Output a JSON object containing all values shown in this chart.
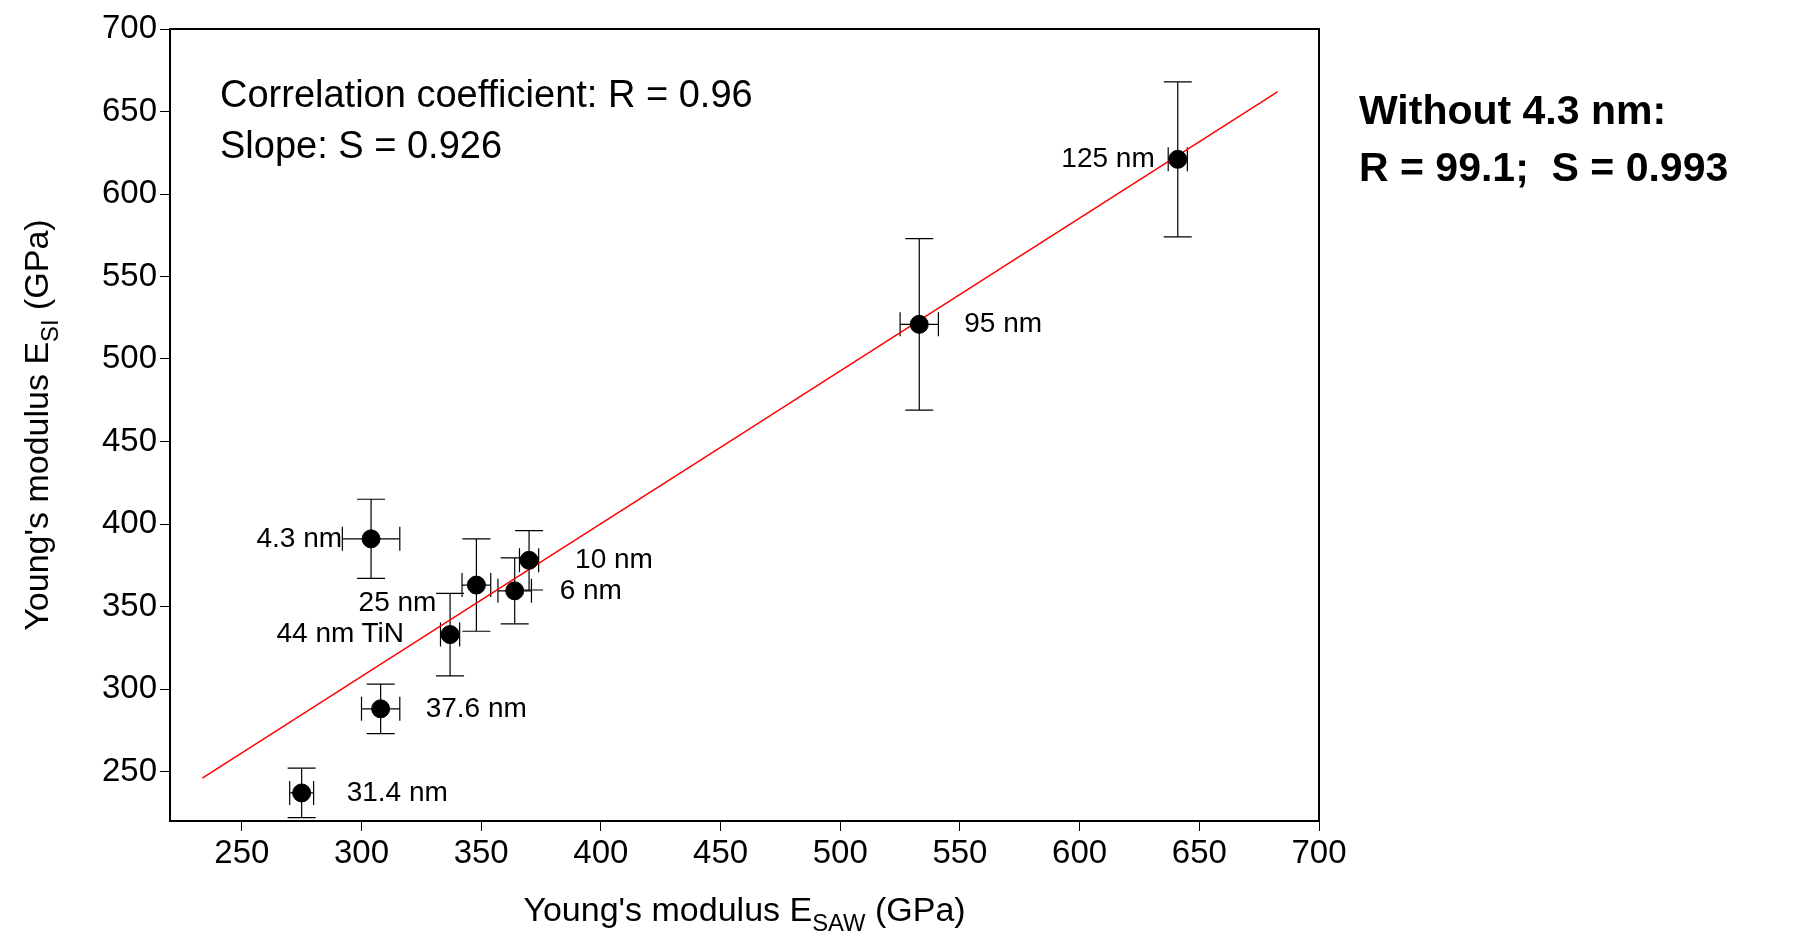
{
  "chart_data": {
    "type": "scatter",
    "xlabel": "Young's modulus E$_{SAW}$ (GPa)",
    "ylabel": "Young's modulus E$_{SI}$ (GPa)",
    "xlim": [
      220,
      700
    ],
    "ylim": [
      220,
      700
    ],
    "xticks": [
      250,
      300,
      350,
      400,
      450,
      500,
      550,
      600,
      650,
      700
    ],
    "yticks": [
      250,
      300,
      350,
      400,
      450,
      500,
      550,
      600,
      650,
      700
    ],
    "grid": false,
    "legend": false,
    "series": [
      {
        "color": "#000000",
        "marker": "circle",
        "x": [
          641,
          533,
          304,
          370,
          348,
          364,
          337,
          308,
          275
        ],
        "values": [
          621,
          521,
          391,
          378,
          363,
          359.5,
          333,
          288,
          237
        ],
        "errors": [
          47,
          52,
          24,
          18,
          28,
          20,
          25,
          15,
          15
        ],
        "xerrors": [
          4,
          8,
          12,
          4,
          6,
          7,
          4,
          8,
          5
        ]
      },
      {
        "type": "line",
        "color": "#ff0000",
        "marker": "none",
        "x": [
          233.5,
          682.7
        ],
        "values": [
          246,
          662
        ]
      }
    ],
    "annotations": [
      "Correlation coefficient: R = 0.96",
      "Slope: S = 0.926",
      "Without 4.3 nm:",
      "R = 99.1;  S = 0.993",
      {
        "text": "125 nm",
        "x": 641,
        "y": 621
      },
      {
        "text": "95 nm",
        "x": 533,
        "y": 521
      },
      {
        "text": "4.3 nm",
        "x": 304,
        "y": 391
      },
      {
        "text": "10 nm",
        "x": 370,
        "y": 378
      },
      {
        "text": "25 nm",
        "x": 348,
        "y": 363
      },
      {
        "text": "6 nm",
        "x": 364,
        "y": 359.5
      },
      {
        "text": "44 nm TiN",
        "x": 337,
        "y": 333
      },
      {
        "text": "37.6 nm",
        "x": 308,
        "y": 288
      },
      {
        "text": "31.4 nm",
        "x": 275,
        "y": 237
      }
    ]
  }
}
